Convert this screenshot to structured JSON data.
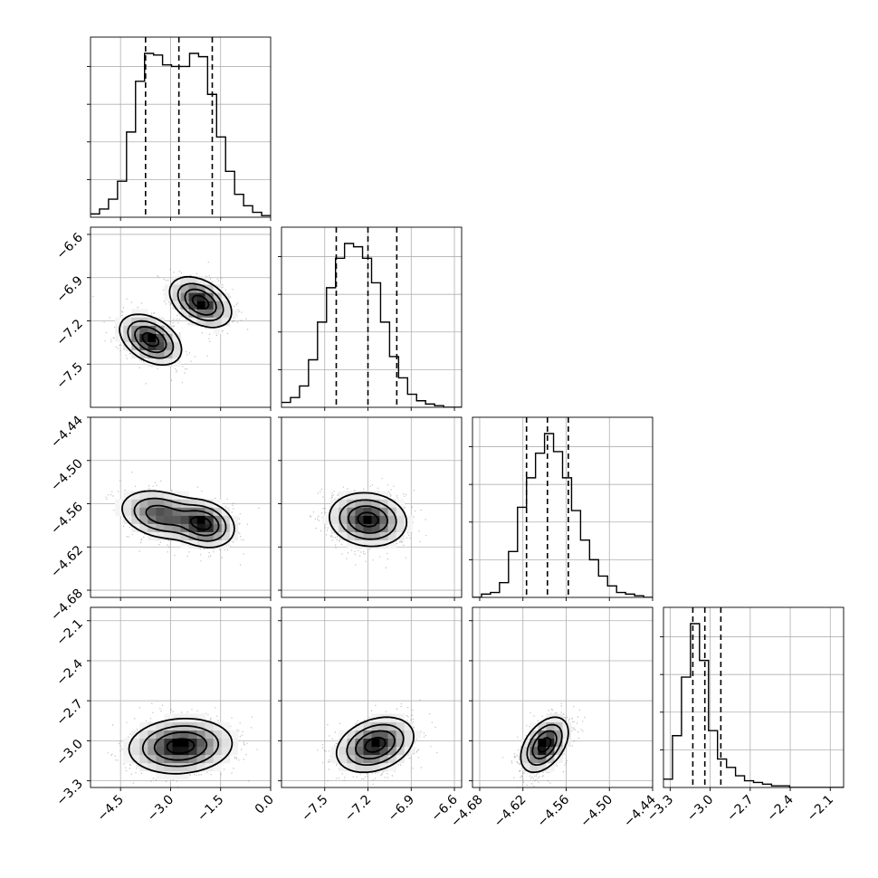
{
  "chart_data": {
    "type": "corner",
    "grid": true,
    "parameters": [
      {
        "range": [
          -5.4,
          0.0
        ],
        "ticks": [
          "-4.5",
          "-3.0",
          "-1.5",
          "0.0"
        ],
        "tick_values": [
          -4.5,
          -3.0,
          -1.5,
          0.0
        ]
      },
      {
        "range": [
          -7.8,
          -6.55
        ],
        "ticks": [
          "-7.5",
          "-7.2",
          "-6.9",
          "-6.6"
        ],
        "tick_values": [
          -7.5,
          -7.2,
          -6.9,
          -6.6
        ]
      },
      {
        "range": [
          -4.69,
          -4.44
        ],
        "ticks": [
          "-4.68",
          "-4.62",
          "-4.56",
          "-4.50",
          "-4.44"
        ],
        "tick_values": [
          -4.68,
          -4.62,
          -4.56,
          -4.5,
          -4.44
        ]
      },
      {
        "range": [
          -3.35,
          -2.0
        ],
        "ticks": [
          "-3.3",
          "-3.0",
          "-2.7",
          "-2.4",
          "-2.1"
        ],
        "tick_values": [
          -3.3,
          -3.0,
          -2.7,
          -2.4,
          -2.1
        ]
      }
    ],
    "histograms": [
      {
        "param": 0,
        "bin_start": -5.4,
        "bin_width": 0.27,
        "counts": [
          0.02,
          0.05,
          0.11,
          0.22,
          0.52,
          0.83,
          1.0,
          0.99,
          0.93,
          0.92,
          0.92,
          1.0,
          0.98,
          0.75,
          0.49,
          0.28,
          0.14,
          0.07,
          0.03,
          0.01
        ],
        "quantiles": [
          -3.75,
          -2.75,
          -1.75
        ]
      },
      {
        "param": 1,
        "bin_start": -7.8,
        "bin_width": 0.0625,
        "counts": [
          0.03,
          0.06,
          0.13,
          0.29,
          0.52,
          0.73,
          0.91,
          1.0,
          0.98,
          0.91,
          0.76,
          0.52,
          0.31,
          0.18,
          0.08,
          0.04,
          0.02,
          0.01,
          0.0,
          0.0
        ],
        "quantiles": [
          -7.42,
          -7.2,
          -7.0
        ]
      },
      {
        "param": 2,
        "bin_start": -4.69,
        "bin_width": 0.0125,
        "counts": [
          0.0,
          0.02,
          0.03,
          0.09,
          0.28,
          0.55,
          0.73,
          0.88,
          1.0,
          0.89,
          0.73,
          0.53,
          0.35,
          0.23,
          0.13,
          0.07,
          0.03,
          0.02,
          0.01,
          0.0
        ],
        "quantiles": [
          -4.615,
          -4.586,
          -4.557
        ]
      },
      {
        "param": 3,
        "bin_start": -3.35,
        "bin_width": 0.0675,
        "counts": [
          0.05,
          0.31,
          0.66,
          0.98,
          0.76,
          0.34,
          0.17,
          0.12,
          0.07,
          0.04,
          0.03,
          0.02,
          0.01,
          0.01,
          0.0,
          0.0,
          0.0,
          0.0,
          0.0,
          0.0
        ],
        "quantiles": [
          -3.13,
          -3.04,
          -2.92
        ]
      }
    ],
    "joint_panels": [
      {
        "x": 0,
        "y": 1,
        "modes": [
          {
            "mx": -3.6,
            "my": -7.33,
            "sx": 0.45,
            "sy": 0.085,
            "rho": -0.4,
            "w": 0.5
          },
          {
            "mx": -2.1,
            "my": -7.07,
            "sx": 0.45,
            "sy": 0.085,
            "rho": -0.4,
            "w": 0.5
          }
        ]
      },
      {
        "x": 0,
        "y": 2,
        "modes": [
          {
            "mx": -3.3,
            "my": -4.575,
            "sx": 0.6,
            "sy": 0.017,
            "rho": -0.25,
            "w": 0.45
          },
          {
            "mx": -2.0,
            "my": -4.588,
            "sx": 0.45,
            "sy": 0.016,
            "rho": -0.2,
            "w": 0.55
          }
        ]
      },
      {
        "x": 1,
        "y": 2,
        "modes": [
          {
            "mx": -7.2,
            "my": -4.582,
            "sx": 0.13,
            "sy": 0.018,
            "rho": -0.1,
            "w": 1.0
          }
        ]
      },
      {
        "x": 0,
        "y": 3,
        "modes": [
          {
            "mx": -2.7,
            "my": -3.04,
            "sx": 0.75,
            "sy": 0.1,
            "rho": 0.1,
            "w": 1.0
          }
        ]
      },
      {
        "x": 1,
        "y": 3,
        "modes": [
          {
            "mx": -7.15,
            "my": -3.03,
            "sx": 0.13,
            "sy": 0.1,
            "rho": 0.3,
            "w": 1.0
          }
        ]
      },
      {
        "x": 2,
        "y": 3,
        "modes": [
          {
            "mx": -4.59,
            "my": -3.03,
            "sx": 0.016,
            "sy": 0.1,
            "rho": 0.45,
            "w": 1.0
          }
        ]
      }
    ]
  }
}
